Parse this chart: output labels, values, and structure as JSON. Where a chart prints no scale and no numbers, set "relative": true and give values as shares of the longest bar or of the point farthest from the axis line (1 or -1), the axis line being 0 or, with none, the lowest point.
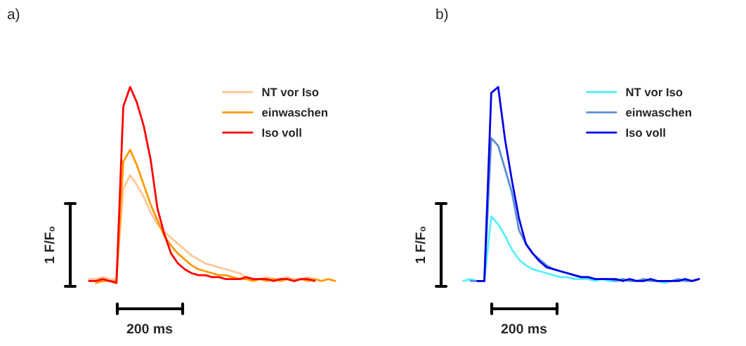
{
  "chart_data": [
    {
      "type": "line",
      "title": "a)",
      "relative": true,
      "legend": "top right",
      "tick_labels": false,
      "annotations": [
        "1 F/F₀",
        "200 ms"
      ],
      "categories": [
        null,
        null,
        null,
        null,
        null,
        null,
        null,
        null,
        null,
        null,
        null,
        null,
        null,
        null,
        null,
        null,
        null,
        null,
        null,
        null,
        null,
        null,
        null,
        null,
        null,
        null,
        null,
        null,
        null,
        null,
        null,
        null,
        null,
        null,
        null,
        null,
        null
      ],
      "series": [
        {
          "name": "NT vor Iso",
          "color": "#fcc896",
          "values": [
            0.02,
            0.02,
            0.03,
            0.02,
            0.02,
            0.48,
            0.55,
            0.5,
            0.44,
            0.36,
            0.3,
            0.26,
            0.23,
            0.2,
            0.17,
            0.14,
            0.12,
            0.1,
            0.09,
            0.08,
            0.07,
            0.06,
            0.05,
            0.03,
            0.02,
            0.02,
            0.03,
            0.02,
            0.02,
            0.03,
            0.02,
            0.02,
            0.03,
            0.02,
            null,
            null,
            null
          ]
        },
        {
          "name": "einwaschen",
          "color": "#ff9900",
          "values": [
            null,
            0.0,
            0.01,
            0.01,
            0.01,
            0.62,
            0.68,
            0.6,
            0.5,
            0.4,
            0.32,
            0.24,
            0.19,
            0.15,
            0.12,
            0.09,
            0.07,
            0.06,
            0.05,
            0.04,
            0.04,
            0.03,
            0.02,
            0.02,
            0.01,
            0.02,
            0.01,
            0.02,
            0.01,
            0.02,
            0.01,
            0.02,
            0.01,
            0.02,
            0.01,
            0.02,
            0.01
          ]
        },
        {
          "name": "Iso voll",
          "color": "#ff0000",
          "values": [
            0.01,
            0.01,
            0.02,
            0.01,
            0.0,
            0.9,
            1.0,
            0.92,
            0.8,
            0.63,
            0.38,
            0.25,
            0.15,
            0.1,
            0.07,
            0.05,
            0.04,
            0.04,
            0.03,
            0.03,
            0.02,
            0.02,
            0.02,
            0.03,
            0.02,
            0.02,
            0.02,
            0.01,
            0.02,
            0.02,
            0.01,
            0.02,
            0.02,
            0.01,
            null,
            null,
            null
          ]
        }
      ]
    },
    {
      "type": "line",
      "title": "b)",
      "relative": true,
      "legend": "top right",
      "tick_labels": false,
      "annotations": [
        "1 F/F₀",
        "200 ms"
      ],
      "categories": [
        null,
        null,
        null,
        null,
        null,
        null,
        null,
        null,
        null,
        null,
        null,
        null,
        null,
        null,
        null,
        null,
        null,
        null,
        null,
        null,
        null,
        null,
        null,
        null,
        null,
        null,
        null,
        null,
        null,
        null,
        null,
        null,
        null,
        null,
        null
      ],
      "series": [
        {
          "name": "NT vor Iso",
          "color": "#55f0f8",
          "values": [
            0.01,
            0.02,
            0.01,
            0.01,
            0.34,
            0.3,
            0.24,
            0.17,
            0.12,
            0.09,
            0.07,
            0.06,
            0.05,
            0.04,
            0.03,
            0.03,
            0.02,
            0.02,
            0.02,
            0.01,
            0.02,
            0.01,
            0.01,
            0.02,
            0.01,
            0.01,
            0.02,
            0.01,
            0.01,
            0.0,
            0.01,
            0.01,
            0.01,
            0.01,
            0.02
          ]
        },
        {
          "name": "einwaschen",
          "color": "#5b8fd6",
          "values": [
            null,
            0.01,
            0.01,
            0.01,
            0.74,
            0.7,
            0.58,
            0.46,
            0.27,
            0.2,
            0.15,
            0.12,
            0.09,
            0.07,
            0.06,
            0.05,
            0.04,
            0.03,
            0.03,
            0.02,
            0.02,
            0.02,
            0.01,
            0.02,
            0.01,
            0.01,
            0.02,
            0.01,
            0.01,
            0.01,
            0.01,
            0.02,
            0.01,
            0.01,
            0.02
          ]
        },
        {
          "name": "Iso voll",
          "color": "#0000e6",
          "values": [
            null,
            null,
            0.01,
            0.01,
            0.97,
            1.0,
            0.73,
            0.52,
            0.33,
            0.2,
            0.15,
            0.11,
            0.08,
            0.07,
            0.06,
            0.05,
            0.04,
            0.03,
            0.03,
            0.02,
            0.02,
            0.02,
            0.02,
            0.01,
            0.02,
            0.01,
            0.01,
            0.02,
            0.01,
            0.01,
            0.01,
            0.01,
            0.02,
            0.01,
            0.02
          ]
        }
      ]
    }
  ]
}
